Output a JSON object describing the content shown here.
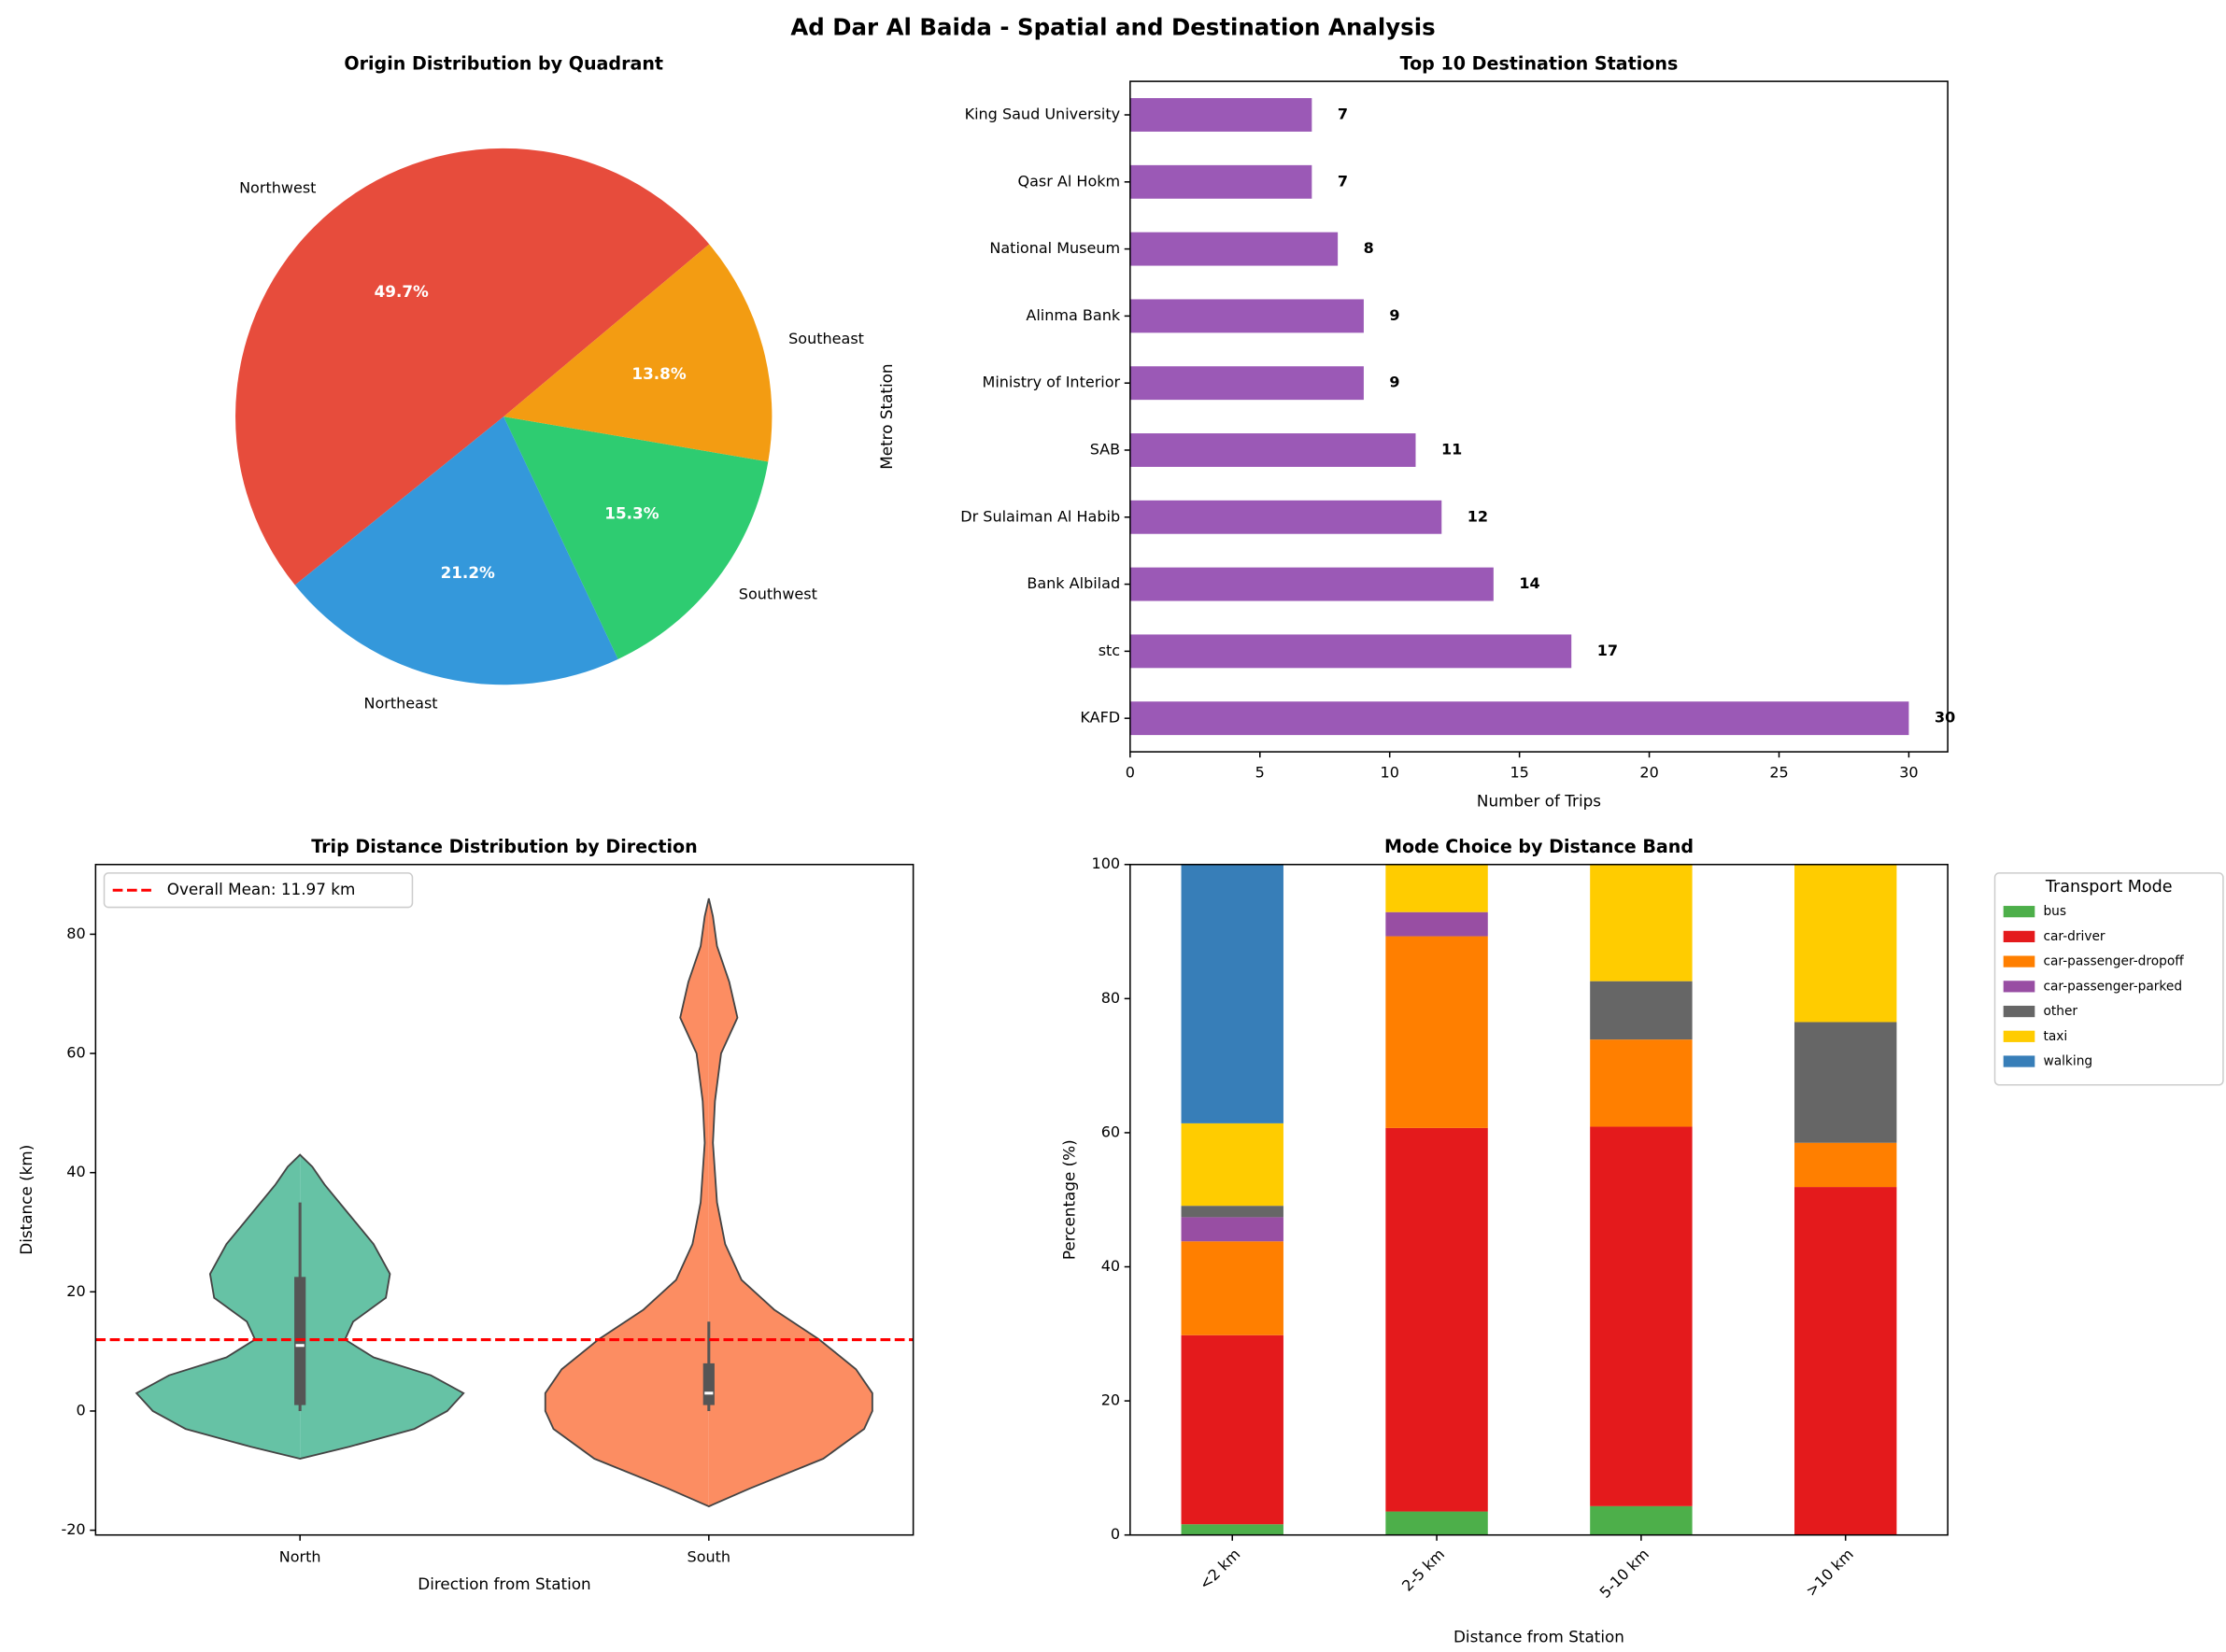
{
  "title": "Ad Dar Al Baida - Spatial and Destination Analysis",
  "chart_data": [
    {
      "type": "pie",
      "title": "Origin Distribution by Quadrant",
      "categories": [
        "Northwest",
        "Northeast",
        "Southwest",
        "Southeast"
      ],
      "values": [
        49.7,
        21.2,
        15.3,
        13.8
      ],
      "value_labels": [
        "49.7%",
        "21.2%",
        "15.3%",
        "13.8%"
      ],
      "colors": [
        "#e74c3c",
        "#3498db",
        "#2ecc71",
        "#f39c12"
      ],
      "startangle": 40
    },
    {
      "type": "barh",
      "title": "Top 10 Destination Stations",
      "xlabel": "Number of Trips",
      "ylabel": "Metro Station",
      "categories": [
        "KAFD",
        "stc",
        "Bank Albilad",
        "Dr Sulaiman Al Habib",
        "SAB",
        "Ministry of Interior",
        "Alinma Bank",
        "National Museum",
        "Qasr Al Hokm",
        "King Saud University"
      ],
      "values": [
        30,
        17,
        14,
        12,
        11,
        9,
        9,
        8,
        7,
        7
      ],
      "color": "#9b59b6",
      "xlim": [
        0,
        31.5
      ],
      "xticks": [
        0,
        5,
        10,
        15,
        20,
        25,
        30
      ]
    },
    {
      "type": "violin",
      "title": "Trip Distance Distribution by Direction",
      "xlabel": "Direction from Station",
      "ylabel": "Distance (km)",
      "categories": [
        "North",
        "South"
      ],
      "colors": [
        "#66c2a5",
        "#fc8d62"
      ],
      "ylim": [
        -20.8,
        91.7
      ],
      "yticks": [
        -20,
        0,
        20,
        40,
        60,
        80
      ],
      "violins": [
        {
          "y": [
            -8,
            -6,
            -3,
            0,
            3,
            6,
            9,
            12,
            15,
            19,
            23,
            28,
            33,
            38,
            41,
            43
          ],
          "half_width": [
            0,
            0.12,
            0.28,
            0.36,
            0.4,
            0.32,
            0.18,
            0.11,
            0.13,
            0.21,
            0.22,
            0.18,
            0.12,
            0.06,
            0.03,
            0
          ],
          "whisker": [
            0,
            35
          ],
          "box": [
            1,
            22.5
          ],
          "median": 11
        },
        {
          "y": [
            -16,
            -13,
            -8,
            -3,
            0,
            3,
            7,
            12,
            17,
            22,
            28,
            35,
            45,
            52,
            60,
            66,
            72,
            78,
            83,
            86
          ],
          "half_width": [
            0,
            0.1,
            0.28,
            0.38,
            0.4,
            0.4,
            0.36,
            0.27,
            0.16,
            0.08,
            0.04,
            0.02,
            0.01,
            0.015,
            0.03,
            0.07,
            0.05,
            0.02,
            0.01,
            0
          ],
          "whisker": [
            0,
            15
          ],
          "box": [
            1,
            8
          ],
          "median": 3
        }
      ],
      "mean_line": {
        "value": 11.97,
        "label": "Overall Mean: 11.97 km",
        "color": "#ff0000"
      },
      "legend": "upper left"
    },
    {
      "type": "bar",
      "stacked": true,
      "title": "Mode Choice by Distance Band",
      "xlabel": "Distance from Station",
      "ylabel": "Percentage (%)",
      "categories": [
        "<2 km",
        "2-5 km",
        "5-10 km",
        ">10 km"
      ],
      "ylim": [
        0,
        100
      ],
      "yticks": [
        0,
        20,
        40,
        60,
        80,
        100
      ],
      "legend": {
        "title": "Transport Mode",
        "loc": "outside right"
      },
      "series": [
        {
          "name": "bus",
          "color": "#4daf4a",
          "values": [
            1.6,
            3.5,
            4.3,
            0
          ]
        },
        {
          "name": "car-driver",
          "color": "#e41a1c",
          "values": [
            28.2,
            57.2,
            56.6,
            51.9
          ]
        },
        {
          "name": "car-passenger-dropoff",
          "color": "#ff7f00",
          "values": [
            14,
            28.6,
            13,
            6.6
          ]
        },
        {
          "name": "car-passenger-parked",
          "color": "#984ea3",
          "values": [
            3.6,
            3.6,
            0,
            0
          ]
        },
        {
          "name": "other",
          "color": "#666666",
          "values": [
            1.7,
            0,
            8.7,
            18
          ]
        },
        {
          "name": "taxi",
          "color": "#ffcc00",
          "values": [
            12.3,
            7.1,
            17.4,
            23.5
          ]
        },
        {
          "name": "walking",
          "color": "#377eb8",
          "values": [
            38.6,
            0,
            0,
            0
          ]
        }
      ]
    }
  ]
}
